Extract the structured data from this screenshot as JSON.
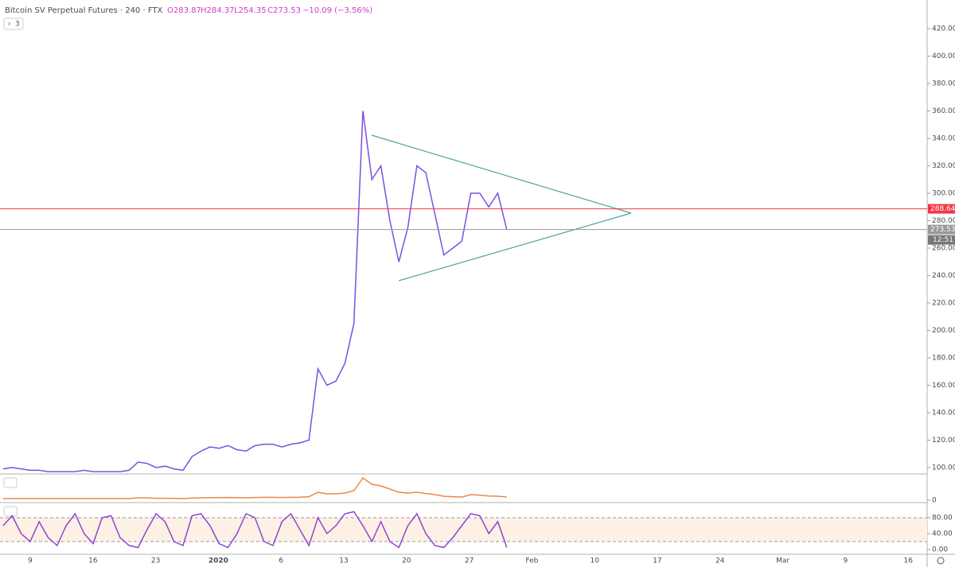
{
  "header": {
    "title": "Bitcoin SV Perpetual Futures · 240 · FTX",
    "open": "O283.87",
    "high": "H284.37",
    "low": "L254.35",
    "close": "C273.53",
    "change": "−10.09 (−3.56%)",
    "badge": "3"
  },
  "time_axis": [
    "9",
    "16",
    "23",
    "2020",
    "6",
    "13",
    "20",
    "27",
    "Feb",
    "10",
    "17",
    "24",
    "Mar",
    "9",
    "16"
  ],
  "chart_data": [
    {
      "type": "line",
      "color": "#7b4fe0",
      "values": [
        99,
        100,
        99,
        98,
        98,
        97,
        97,
        97,
        97,
        98,
        97,
        97,
        97,
        97,
        98,
        104,
        103,
        100,
        101,
        99,
        98,
        108,
        112,
        115,
        114,
        116,
        113,
        112,
        116,
        117,
        117,
        115,
        117,
        118,
        120,
        172,
        160,
        163,
        176,
        205,
        360,
        310,
        320,
        280,
        250,
        275,
        320,
        315,
        285,
        255,
        260,
        265,
        300,
        300,
        290,
        300,
        273.53
      ],
      "ylim": [
        95.9,
        440.9
      ],
      "yticks": [
        {
          "value": 100,
          "label": "100.00"
        },
        {
          "value": 120,
          "label": "120.00"
        },
        {
          "value": 140,
          "label": "140.00"
        },
        {
          "value": 160,
          "label": "160.00"
        },
        {
          "value": 180,
          "label": "180.00"
        },
        {
          "value": 200,
          "label": "200.00"
        },
        {
          "value": 220,
          "label": "220.00"
        },
        {
          "value": 240,
          "label": "240.00"
        },
        {
          "value": 260,
          "label": "260.00"
        },
        {
          "value": 280,
          "label": "280.00"
        },
        {
          "value": 300,
          "label": "300.00"
        },
        {
          "value": 320,
          "label": "320.00"
        },
        {
          "value": 340,
          "label": "340.00"
        },
        {
          "value": 360,
          "label": "360.00"
        },
        {
          "value": 380,
          "label": "380.00"
        },
        {
          "value": 400,
          "label": "400.00"
        },
        {
          "value": 420,
          "label": "420.00"
        }
      ],
      "price_lines": [
        {
          "value": 288.64,
          "label": "288.64",
          "color": "#f23645"
        },
        {
          "value": 273.53,
          "label": "273.53",
          "color": "#9a9a9a"
        }
      ],
      "countdown": "12:51"
    },
    {
      "type": "line",
      "color": "#e8894a",
      "values": [
        1,
        1,
        1,
        1,
        1,
        1,
        1,
        1,
        1,
        1,
        1,
        1,
        1,
        1,
        1,
        1.5,
        1.5,
        1.2,
        1.2,
        1.1,
        1,
        1.3,
        1.5,
        1.6,
        1.6,
        1.7,
        1.6,
        1.5,
        1.7,
        1.8,
        1.8,
        1.7,
        1.8,
        1.9,
        2.2,
        5,
        4,
        4,
        4.5,
        6,
        14,
        10,
        9,
        7,
        5,
        4.5,
        5,
        4.2,
        3.5,
        2.5,
        2.2,
        2,
        3.5,
        3.2,
        2.6,
        2.5,
        2
      ],
      "ylim": [
        -1,
        16
      ],
      "yticks": [
        0
      ]
    },
    {
      "type": "line",
      "color": "#8e44d6",
      "values": [
        60,
        85,
        40,
        20,
        70,
        30,
        10,
        60,
        90,
        40,
        15,
        80,
        85,
        30,
        10,
        5,
        50,
        90,
        70,
        20,
        10,
        85,
        90,
        60,
        15,
        5,
        40,
        90,
        80,
        20,
        10,
        70,
        90,
        50,
        10,
        80,
        40,
        60,
        90,
        95,
        60,
        20,
        70,
        20,
        5,
        60,
        90,
        40,
        10,
        5,
        30,
        60,
        90,
        85,
        40,
        70,
        5
      ],
      "ylim": [
        -12,
        116
      ],
      "yticks": [
        {
          "value": 0,
          "label": "0.00"
        },
        {
          "value": 40,
          "label": "40.00"
        },
        {
          "value": 80,
          "label": "80.00"
        }
      ]
    }
  ]
}
